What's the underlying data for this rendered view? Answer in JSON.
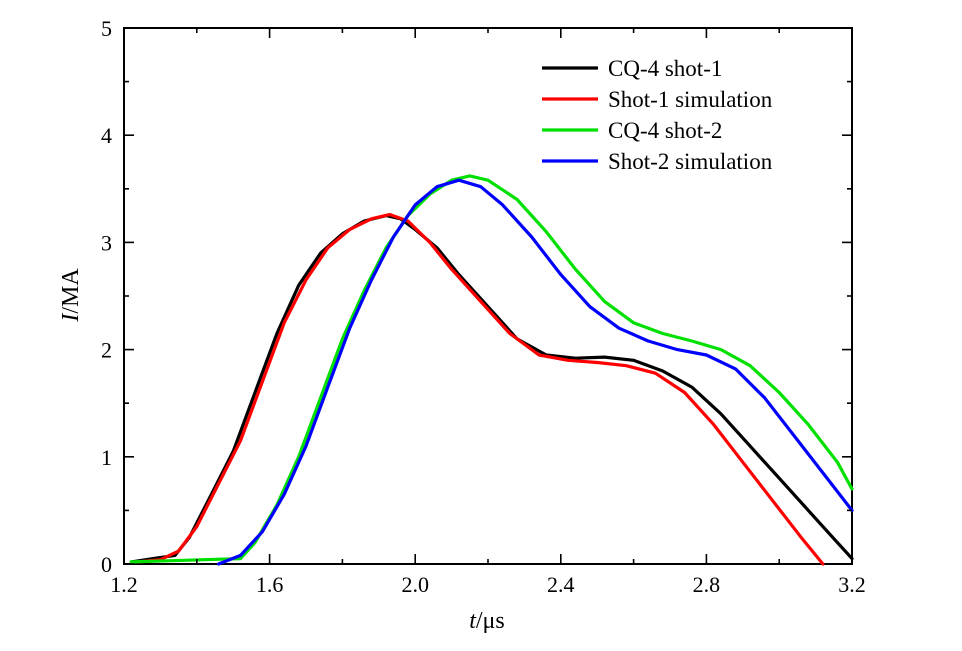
{
  "chart_data": {
    "type": "line",
    "title": "",
    "xlabel_italic": "t",
    "xlabel_unit": "/μs",
    "ylabel_italic": "I",
    "ylabel_unit": "/MA",
    "xlim": [
      1.2,
      3.2
    ],
    "ylim": [
      0,
      5
    ],
    "xticks": [
      1.2,
      1.6,
      2.0,
      2.4,
      2.8,
      3.2
    ],
    "xtick_labels": [
      "1.2",
      "1.6",
      "2.0",
      "2.4",
      "2.8",
      "3.2"
    ],
    "yticks": [
      0,
      1,
      2,
      3,
      4,
      5
    ],
    "ytick_labels": [
      "0",
      "1",
      "2",
      "3",
      "4",
      "5"
    ],
    "grid": false,
    "legend_position": "top-right",
    "series": [
      {
        "name": "CQ-4 shot-1",
        "color": "#000000",
        "x": [
          1.22,
          1.28,
          1.34,
          1.38,
          1.44,
          1.5,
          1.56,
          1.62,
          1.68,
          1.74,
          1.8,
          1.86,
          1.92,
          1.96,
          2.0,
          2.06,
          2.12,
          2.2,
          2.28,
          2.36,
          2.44,
          2.52,
          2.6,
          2.68,
          2.76,
          2.84,
          2.92,
          3.0,
          3.08,
          3.16,
          3.2
        ],
        "y": [
          0.02,
          0.05,
          0.08,
          0.25,
          0.65,
          1.05,
          1.6,
          2.15,
          2.6,
          2.9,
          3.08,
          3.2,
          3.25,
          3.22,
          3.12,
          2.95,
          2.7,
          2.4,
          2.1,
          1.95,
          1.92,
          1.93,
          1.9,
          1.8,
          1.65,
          1.4,
          1.1,
          0.8,
          0.5,
          0.2,
          0.05
        ]
      },
      {
        "name": "Shot-1 simulation",
        "color": "#ff0000",
        "x": [
          1.24,
          1.3,
          1.35,
          1.4,
          1.46,
          1.52,
          1.58,
          1.64,
          1.7,
          1.76,
          1.82,
          1.88,
          1.93,
          1.98,
          2.04,
          2.1,
          2.18,
          2.26,
          2.34,
          2.42,
          2.5,
          2.58,
          2.66,
          2.74,
          2.82,
          2.9,
          2.98,
          3.06,
          3.12
        ],
        "y": [
          0.02,
          0.04,
          0.12,
          0.35,
          0.75,
          1.15,
          1.7,
          2.25,
          2.65,
          2.95,
          3.12,
          3.22,
          3.26,
          3.2,
          3.0,
          2.75,
          2.45,
          2.15,
          1.95,
          1.9,
          1.88,
          1.85,
          1.78,
          1.6,
          1.3,
          0.95,
          0.6,
          0.25,
          0.0
        ]
      },
      {
        "name": "CQ-4 shot-2",
        "color": "#00e000",
        "x": [
          1.22,
          1.32,
          1.42,
          1.52,
          1.56,
          1.62,
          1.68,
          1.74,
          1.8,
          1.86,
          1.92,
          1.98,
          2.04,
          2.1,
          2.15,
          2.2,
          2.28,
          2.36,
          2.44,
          2.52,
          2.6,
          2.68,
          2.76,
          2.84,
          2.92,
          3.0,
          3.08,
          3.16,
          3.2
        ],
        "y": [
          0.02,
          0.03,
          0.04,
          0.05,
          0.2,
          0.55,
          1.0,
          1.55,
          2.1,
          2.55,
          2.95,
          3.25,
          3.45,
          3.58,
          3.62,
          3.58,
          3.4,
          3.1,
          2.75,
          2.45,
          2.25,
          2.15,
          2.08,
          2.0,
          1.85,
          1.6,
          1.3,
          0.95,
          0.7
        ]
      },
      {
        "name": "Shot-2 simulation",
        "color": "#0000ff",
        "x": [
          1.46,
          1.52,
          1.58,
          1.64,
          1.7,
          1.76,
          1.82,
          1.88,
          1.94,
          2.0,
          2.06,
          2.12,
          2.18,
          2.24,
          2.32,
          2.4,
          2.48,
          2.56,
          2.64,
          2.72,
          2.8,
          2.88,
          2.96,
          3.04,
          3.12,
          3.2
        ],
        "y": [
          0.0,
          0.08,
          0.3,
          0.65,
          1.1,
          1.65,
          2.2,
          2.65,
          3.05,
          3.35,
          3.52,
          3.58,
          3.52,
          3.35,
          3.05,
          2.7,
          2.4,
          2.2,
          2.08,
          2.0,
          1.95,
          1.82,
          1.55,
          1.2,
          0.85,
          0.5
        ]
      }
    ]
  }
}
